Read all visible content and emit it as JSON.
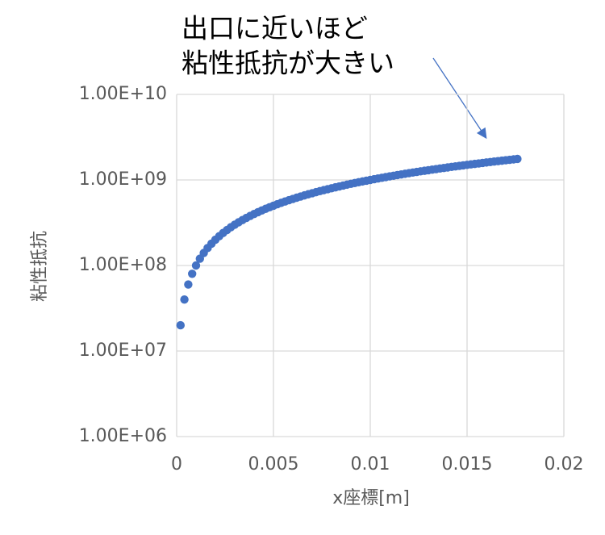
{
  "chart_data": {
    "type": "scatter",
    "annotations": [
      "出口に近いほど",
      "粘性抵抗が大きい"
    ],
    "xlabel": "x座標[m]",
    "ylabel": "粘性抵抗",
    "color": "#4472c4",
    "grid": true,
    "log_y": true,
    "xlim": [
      0,
      0.02
    ],
    "xticks": [
      0,
      0.005,
      0.01,
      0.015,
      0.02
    ],
    "ylim": [
      1000000.0,
      10000000000.0
    ],
    "yticks": [
      {
        "value": 1000000.0,
        "label": "1.00E+06"
      },
      {
        "value": 10000000.0,
        "label": "1.00E+07"
      },
      {
        "value": 100000000.0,
        "label": "1.00E+08"
      },
      {
        "value": 1000000000.0,
        "label": "1.00E+09"
      },
      {
        "value": 10000000000.0,
        "label": "1.00E+10"
      }
    ],
    "x": [
      0.0002,
      0.0004,
      0.0006,
      0.0008,
      0.001,
      0.0012,
      0.0014,
      0.0016,
      0.0018,
      0.002,
      0.0022,
      0.0024,
      0.0026,
      0.0028,
      0.003,
      0.0032,
      0.0034,
      0.0036,
      0.0038,
      0.004,
      0.0042,
      0.0044,
      0.0046,
      0.0048,
      0.005,
      0.0052,
      0.0054,
      0.0056,
      0.0058,
      0.006,
      0.0062,
      0.0064,
      0.0066,
      0.0068,
      0.007,
      0.0072,
      0.0074,
      0.0076,
      0.0078,
      0.008,
      0.0082,
      0.0084,
      0.0086,
      0.0088,
      0.009,
      0.0092,
      0.0094,
      0.0096,
      0.0098,
      0.01,
      0.0102,
      0.0104,
      0.0106,
      0.0108,
      0.011,
      0.0112,
      0.0114,
      0.0116,
      0.0118,
      0.012,
      0.0122,
      0.0124,
      0.0126,
      0.0128,
      0.013,
      0.0132,
      0.0134,
      0.0136,
      0.0138,
      0.014,
      0.0142,
      0.0144,
      0.0146,
      0.0148,
      0.015,
      0.0152,
      0.0154,
      0.0156,
      0.0158,
      0.016,
      0.0162,
      0.0164,
      0.0166,
      0.0168,
      0.017,
      0.0172,
      0.0174,
      0.0176
    ],
    "values": [
      20000000.0,
      40000000.0,
      60000000.0,
      80000000.0,
      100000000.0,
      120000000.0,
      140000000.0,
      160000000.0,
      180000000.0,
      200000000.0,
      220000000.0,
      240000000.0,
      260000000.0,
      280000000.0,
      300000000.0,
      320000000.0,
      340000000.0,
      360000000.0,
      380000000.0,
      400000000.0,
      420000000.0,
      440000000.0,
      460000000.0,
      480000000.0,
      500000000.0,
      520000000.0,
      540000000.0,
      560000000.0,
      580000000.0,
      600000000.0,
      620000000.0,
      640000000.0,
      660000000.0,
      680000000.0,
      700000000.0,
      720000000.0,
      740000000.0,
      760000000.0,
      780000000.0,
      800000000.0,
      820000000.0,
      840000000.0,
      860000000.0,
      880000000.0,
      900000000.0,
      920000000.0,
      940000000.0,
      960000000.0,
      980000000.0,
      1000000000.0,
      1020000000.0,
      1040000000.0,
      1060000000.0,
      1080000000.0,
      1100000000.0,
      1120000000.0,
      1140000000.0,
      1160000000.0,
      1180000000.0,
      1200000000.0,
      1220000000.0,
      1240000000.0,
      1260000000.0,
      1280000000.0,
      1300000000.0,
      1320000000.0,
      1340000000.0,
      1360000000.0,
      1380000000.0,
      1400000000.0,
      1420000000.0,
      1440000000.0,
      1460000000.0,
      1480000000.0,
      1500000000.0,
      1520000000.0,
      1540000000.0,
      1560000000.0,
      1580000000.0,
      1600000000.0,
      1620000000.0,
      1640000000.0,
      1660000000.0,
      1680000000.0,
      1700000000.0,
      1720000000.0,
      1740000000.0,
      1760000000.0
    ]
  }
}
